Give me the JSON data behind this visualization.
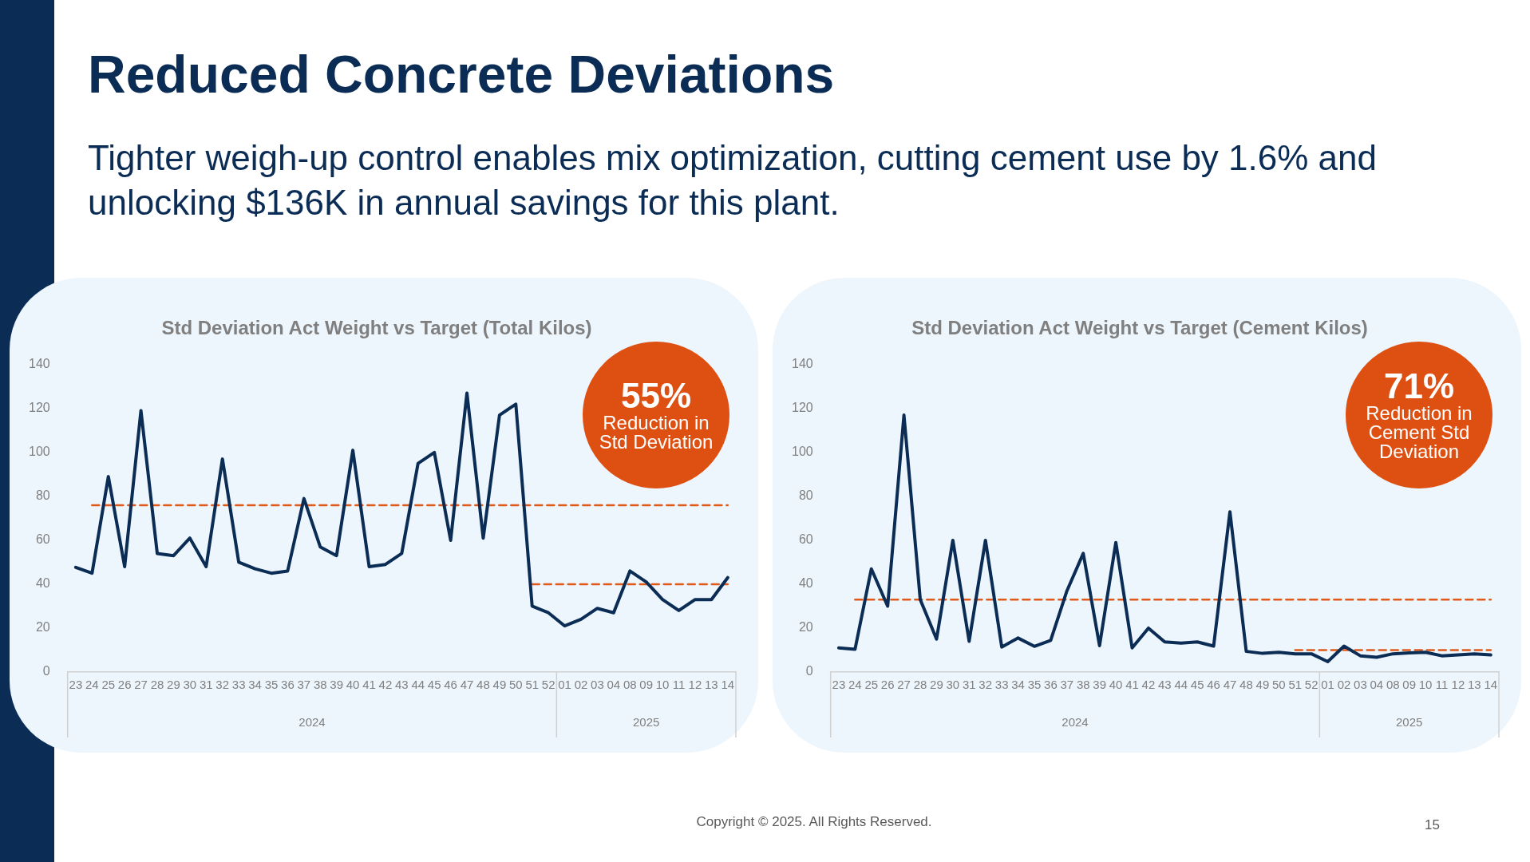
{
  "chart_data": [
    {
      "type": "line",
      "title": "Std Deviation Act Weight vs Target (Total Kilos)",
      "categories": [
        "23",
        "24",
        "25",
        "26",
        "27",
        "28",
        "29",
        "30",
        "31",
        "32",
        "33",
        "34",
        "35",
        "36",
        "37",
        "38",
        "39",
        "40",
        "41",
        "42",
        "43",
        "44",
        "45",
        "46",
        "47",
        "48",
        "49",
        "50",
        "51",
        "52",
        "01",
        "02",
        "03",
        "04",
        "08",
        "09",
        "10",
        "11",
        "12",
        "13",
        "14"
      ],
      "series": [
        {
          "color": "#0b2d55",
          "values": [
            47.7,
            45,
            89,
            48,
            119,
            54,
            53,
            61,
            48,
            97,
            50,
            47,
            45,
            46,
            79,
            57,
            53,
            101,
            48,
            49,
            54,
            95,
            100,
            60,
            127,
            61,
            117,
            122,
            30,
            27,
            21,
            24,
            29,
            27,
            46,
            41,
            33,
            28,
            33,
            33,
            43
          ]
        },
        {
          "color": "#e05a1a",
          "line_style": "dashed",
          "values": [
            null,
            76,
            76,
            76,
            76,
            76,
            76,
            76,
            76,
            76,
            76,
            76,
            76,
            76,
            76,
            76,
            76,
            76,
            76,
            76,
            76,
            76,
            76,
            76,
            76,
            76,
            76,
            76,
            76,
            76,
            76,
            76,
            76,
            76,
            76,
            76,
            76,
            76,
            76,
            76,
            76
          ]
        },
        {
          "color": "#e05a1a",
          "line_style": "dashed",
          "values": [
            null,
            null,
            null,
            null,
            null,
            null,
            null,
            null,
            null,
            null,
            null,
            null,
            null,
            null,
            null,
            null,
            null,
            null,
            null,
            null,
            null,
            null,
            null,
            null,
            null,
            null,
            null,
            null,
            40,
            40,
            40,
            40,
            40,
            40,
            40,
            40,
            40,
            40,
            40,
            40,
            40
          ]
        }
      ],
      "ylim": [
        0,
        140
      ],
      "yticks": [
        0,
        20,
        40,
        60,
        80,
        100,
        120,
        140
      ],
      "annotations": [
        "55%",
        "Reduction in Std Deviation",
        "2024",
        "2025",
        "Reduced Concrete Deviations",
        "Tighter weigh-up control enables mix optimization, cutting cement use by 1.6% and unlocking $136K in annual savings for this plant.",
        "Copyright © 2025. All Rights Reserved.",
        "15"
      ]
    },
    {
      "type": "line",
      "title": "Std Deviation Act Weight vs Target (Cement Kilos)",
      "categories": [
        "23",
        "24",
        "25",
        "26",
        "27",
        "28",
        "29",
        "30",
        "31",
        "32",
        "33",
        "34",
        "35",
        "36",
        "37",
        "38",
        "39",
        "40",
        "41",
        "42",
        "43",
        "44",
        "45",
        "46",
        "47",
        "48",
        "49",
        "50",
        "51",
        "52",
        "01",
        "02",
        "03",
        "04",
        "08",
        "09",
        "10",
        "11",
        "12",
        "13",
        "14"
      ],
      "series": [
        {
          "color": "#0b2d55",
          "values": [
            11,
            10.4,
            47,
            30,
            117,
            33,
            15,
            60,
            14,
            60,
            11.4,
            15.5,
            11.7,
            14.4,
            37,
            54,
            12,
            59,
            11,
            20,
            13.7,
            13.2,
            13.7,
            11.8,
            73,
            9.4,
            8.5,
            9,
            8.3,
            8.3,
            4.7,
            11.8,
            7.4,
            6.7,
            8.3,
            8.7,
            9,
            7.4,
            7.8,
            8.3,
            7.8
          ]
        },
        {
          "color": "#e05a1a",
          "line_style": "dashed",
          "values": [
            null,
            33,
            33,
            33,
            33,
            33,
            33,
            33,
            33,
            33,
            33,
            33,
            33,
            33,
            33,
            33,
            33,
            33,
            33,
            33,
            33,
            33,
            33,
            33,
            33,
            33,
            33,
            33,
            33,
            33,
            33,
            33,
            33,
            33,
            33,
            33,
            33,
            33,
            33,
            33,
            33
          ]
        },
        {
          "color": "#e05a1a",
          "line_style": "dashed",
          "values": [
            null,
            null,
            null,
            null,
            null,
            null,
            null,
            null,
            null,
            null,
            null,
            null,
            null,
            null,
            null,
            null,
            null,
            null,
            null,
            null,
            null,
            null,
            null,
            null,
            null,
            null,
            null,
            null,
            10,
            10,
            10,
            10,
            10,
            10,
            10,
            10,
            10,
            10,
            10,
            10,
            10
          ]
        }
      ],
      "ylim": [
        0,
        140
      ],
      "yticks": [
        0,
        20,
        40,
        60,
        80,
        100,
        120,
        140
      ],
      "annotations": [
        "71%",
        "Reduction in Cement Std Deviation",
        "2024",
        "2025"
      ]
    }
  ]
}
